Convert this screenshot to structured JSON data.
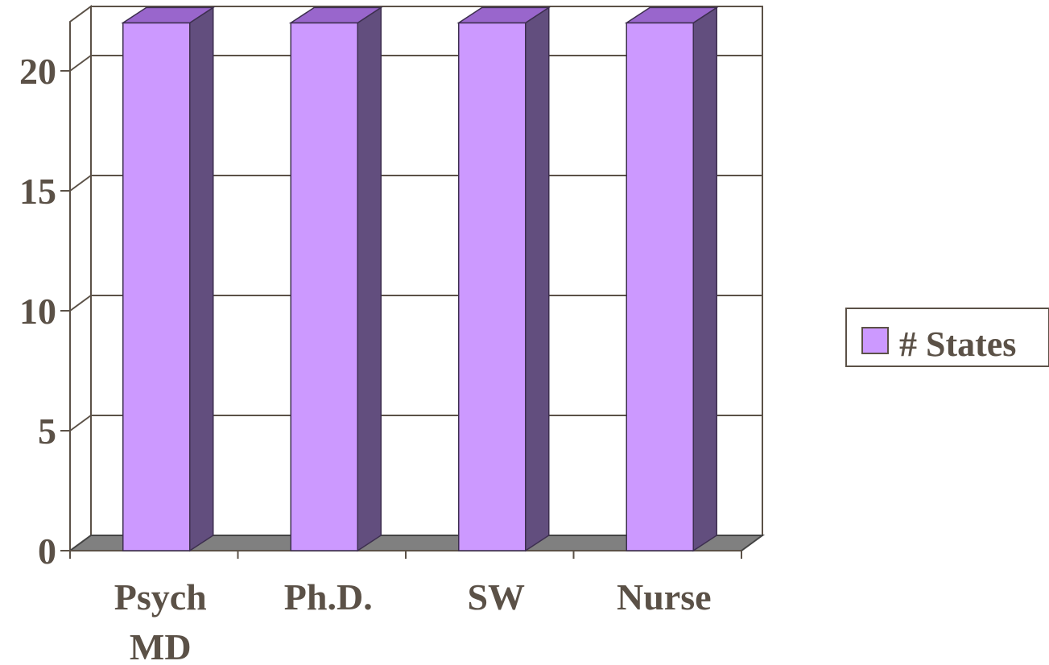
{
  "chart_data": {
    "type": "bar",
    "style": "3d",
    "categories": [
      [
        "Psych",
        "MD"
      ],
      [
        "Ph.D."
      ],
      [
        "SW"
      ],
      [
        "Nurse"
      ]
    ],
    "series": [
      {
        "name": "# States",
        "values": [
          22,
          22,
          22,
          22
        ]
      }
    ],
    "yticks": [
      "0",
      "5",
      "10",
      "15",
      "20"
    ],
    "ylim": [
      0,
      22
    ],
    "grid": true,
    "legend": "right",
    "colors": {
      "bar_front": "#cc99ff",
      "bar_top": "#9966cc",
      "bar_side": "#624e7e",
      "floor": "#808080",
      "grid": "#5b5147",
      "text": "#5b5147"
    }
  }
}
